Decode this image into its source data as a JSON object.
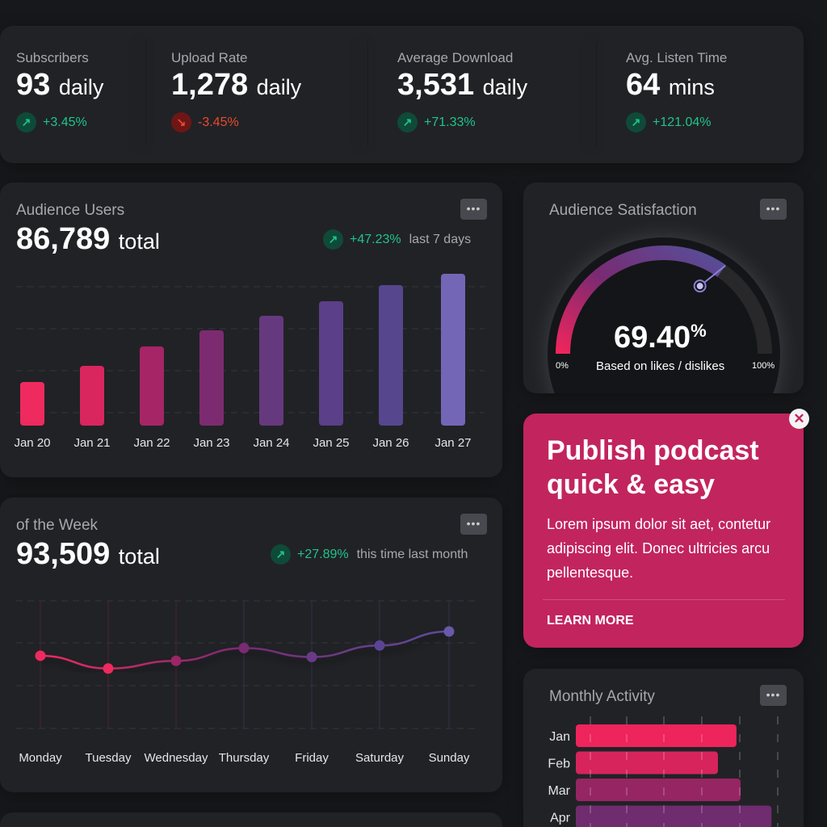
{
  "stats": [
    {
      "label": "Subscribers",
      "value": "93",
      "unit": "daily",
      "change": "+3.45%",
      "dir": "up"
    },
    {
      "label": "Upload Rate",
      "value": "1,278",
      "unit": "daily",
      "change": "-3.45%",
      "dir": "down"
    },
    {
      "label": "Average Download",
      "value": "3,531",
      "unit": "daily",
      "change": "+71.33%",
      "dir": "up"
    },
    {
      "label": "Avg. Listen Time",
      "value": "64",
      "unit": "mins",
      "change": "+121.04%",
      "dir": "up"
    }
  ],
  "audience": {
    "title": "Audience Users",
    "value": "86,789",
    "unit": "total",
    "change": "+47.23%",
    "period": "last 7 days"
  },
  "week": {
    "title": "of the Week",
    "value": "93,509",
    "unit": "total",
    "change": "+27.89%",
    "period": "this time last month"
  },
  "satisfaction": {
    "title": "Audience Satisfaction",
    "value": "69.40",
    "pct": "%",
    "caption": "Based on likes / dislikes",
    "min": "0%",
    "max": "100%",
    "fraction": 0.694
  },
  "promo": {
    "title": "Publish podcast quick & easy",
    "body": "Lorem ipsum dolor sit aet, contetur adipiscing elit. Donec ultricies arcu pellentesque.",
    "cta": "LEARN MORE"
  },
  "monthly": {
    "title": "Monthly Activity"
  },
  "more_label": "•••",
  "chart_data": [
    {
      "type": "bar",
      "title": "Audience Users",
      "categories": [
        "Jan 20",
        "Jan 21",
        "Jan 22",
        "Jan 23",
        "Jan 24",
        "Jan 25",
        "Jan 26",
        "Jan 27"
      ],
      "values": [
        27,
        37,
        49,
        59,
        68,
        77,
        87,
        94
      ],
      "ylim": [
        0,
        100
      ],
      "colors": [
        "#ee2a5e",
        "#d9265f",
        "#a52566",
        "#7d2b70",
        "#66397f",
        "#5b3f88",
        "#56468e",
        "#7466b6"
      ]
    },
    {
      "type": "line",
      "title": "of the Week",
      "categories": [
        "Monday",
        "Tuesday",
        "Wednesday",
        "Thursday",
        "Friday",
        "Saturday",
        "Sunday"
      ],
      "values": [
        57,
        47,
        53,
        63,
        56,
        65,
        76
      ],
      "ylim": [
        0,
        100
      ]
    },
    {
      "type": "bar",
      "orientation": "horizontal",
      "title": "Monthly Activity",
      "categories": [
        "Jan",
        "Feb",
        "Mar",
        "Apr"
      ],
      "values": [
        78,
        69,
        80,
        95
      ],
      "xlim": [
        0,
        100
      ],
      "colors": [
        "#ee245c",
        "#d7245c",
        "#962563",
        "#6f2c6e"
      ]
    }
  ]
}
